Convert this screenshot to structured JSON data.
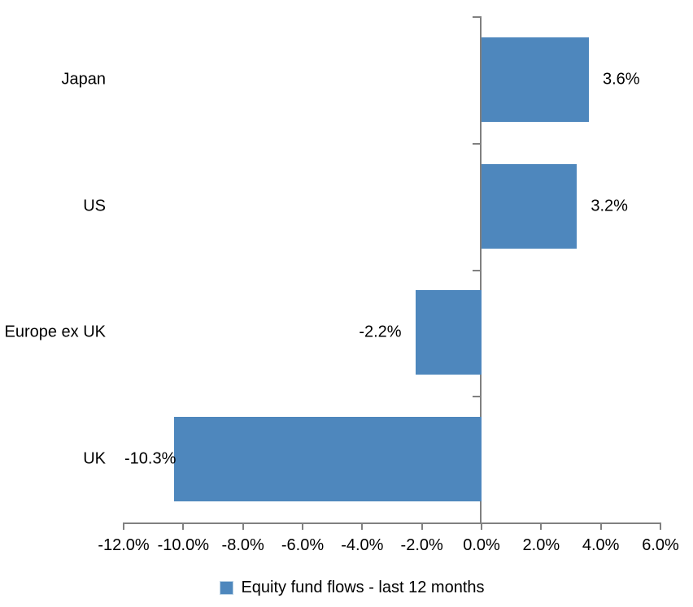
{
  "chart_data": {
    "type": "bar",
    "orientation": "horizontal",
    "title": "",
    "categories": [
      "Japan",
      "US",
      "Europe ex UK",
      "UK"
    ],
    "values": [
      3.6,
      3.2,
      -2.2,
      -10.3
    ],
    "value_labels": [
      "3.6%",
      "3.2%",
      "-2.2%",
      "-10.3%"
    ],
    "xlim": [
      -12,
      6
    ],
    "x_ticks": {
      "values": [
        -12,
        -10,
        -8,
        -6,
        -4,
        -2,
        0,
        2,
        4,
        6
      ],
      "labels": [
        "-12.0%",
        "-10.0%",
        "-8.0%",
        "-6.0%",
        "-4.0%",
        "-2.0%",
        "0.0%",
        "2.0%",
        "4.0%",
        "6.0%"
      ]
    },
    "grid": false,
    "legend": {
      "label": "Equity fund flows - last 12 months",
      "position": "bottom"
    },
    "colors": {
      "bar": "#4E87BD",
      "legend_swatch_border": "#B9D1E5",
      "axis": "#808080",
      "text": "#000000",
      "background": "#FFFFFF"
    }
  }
}
